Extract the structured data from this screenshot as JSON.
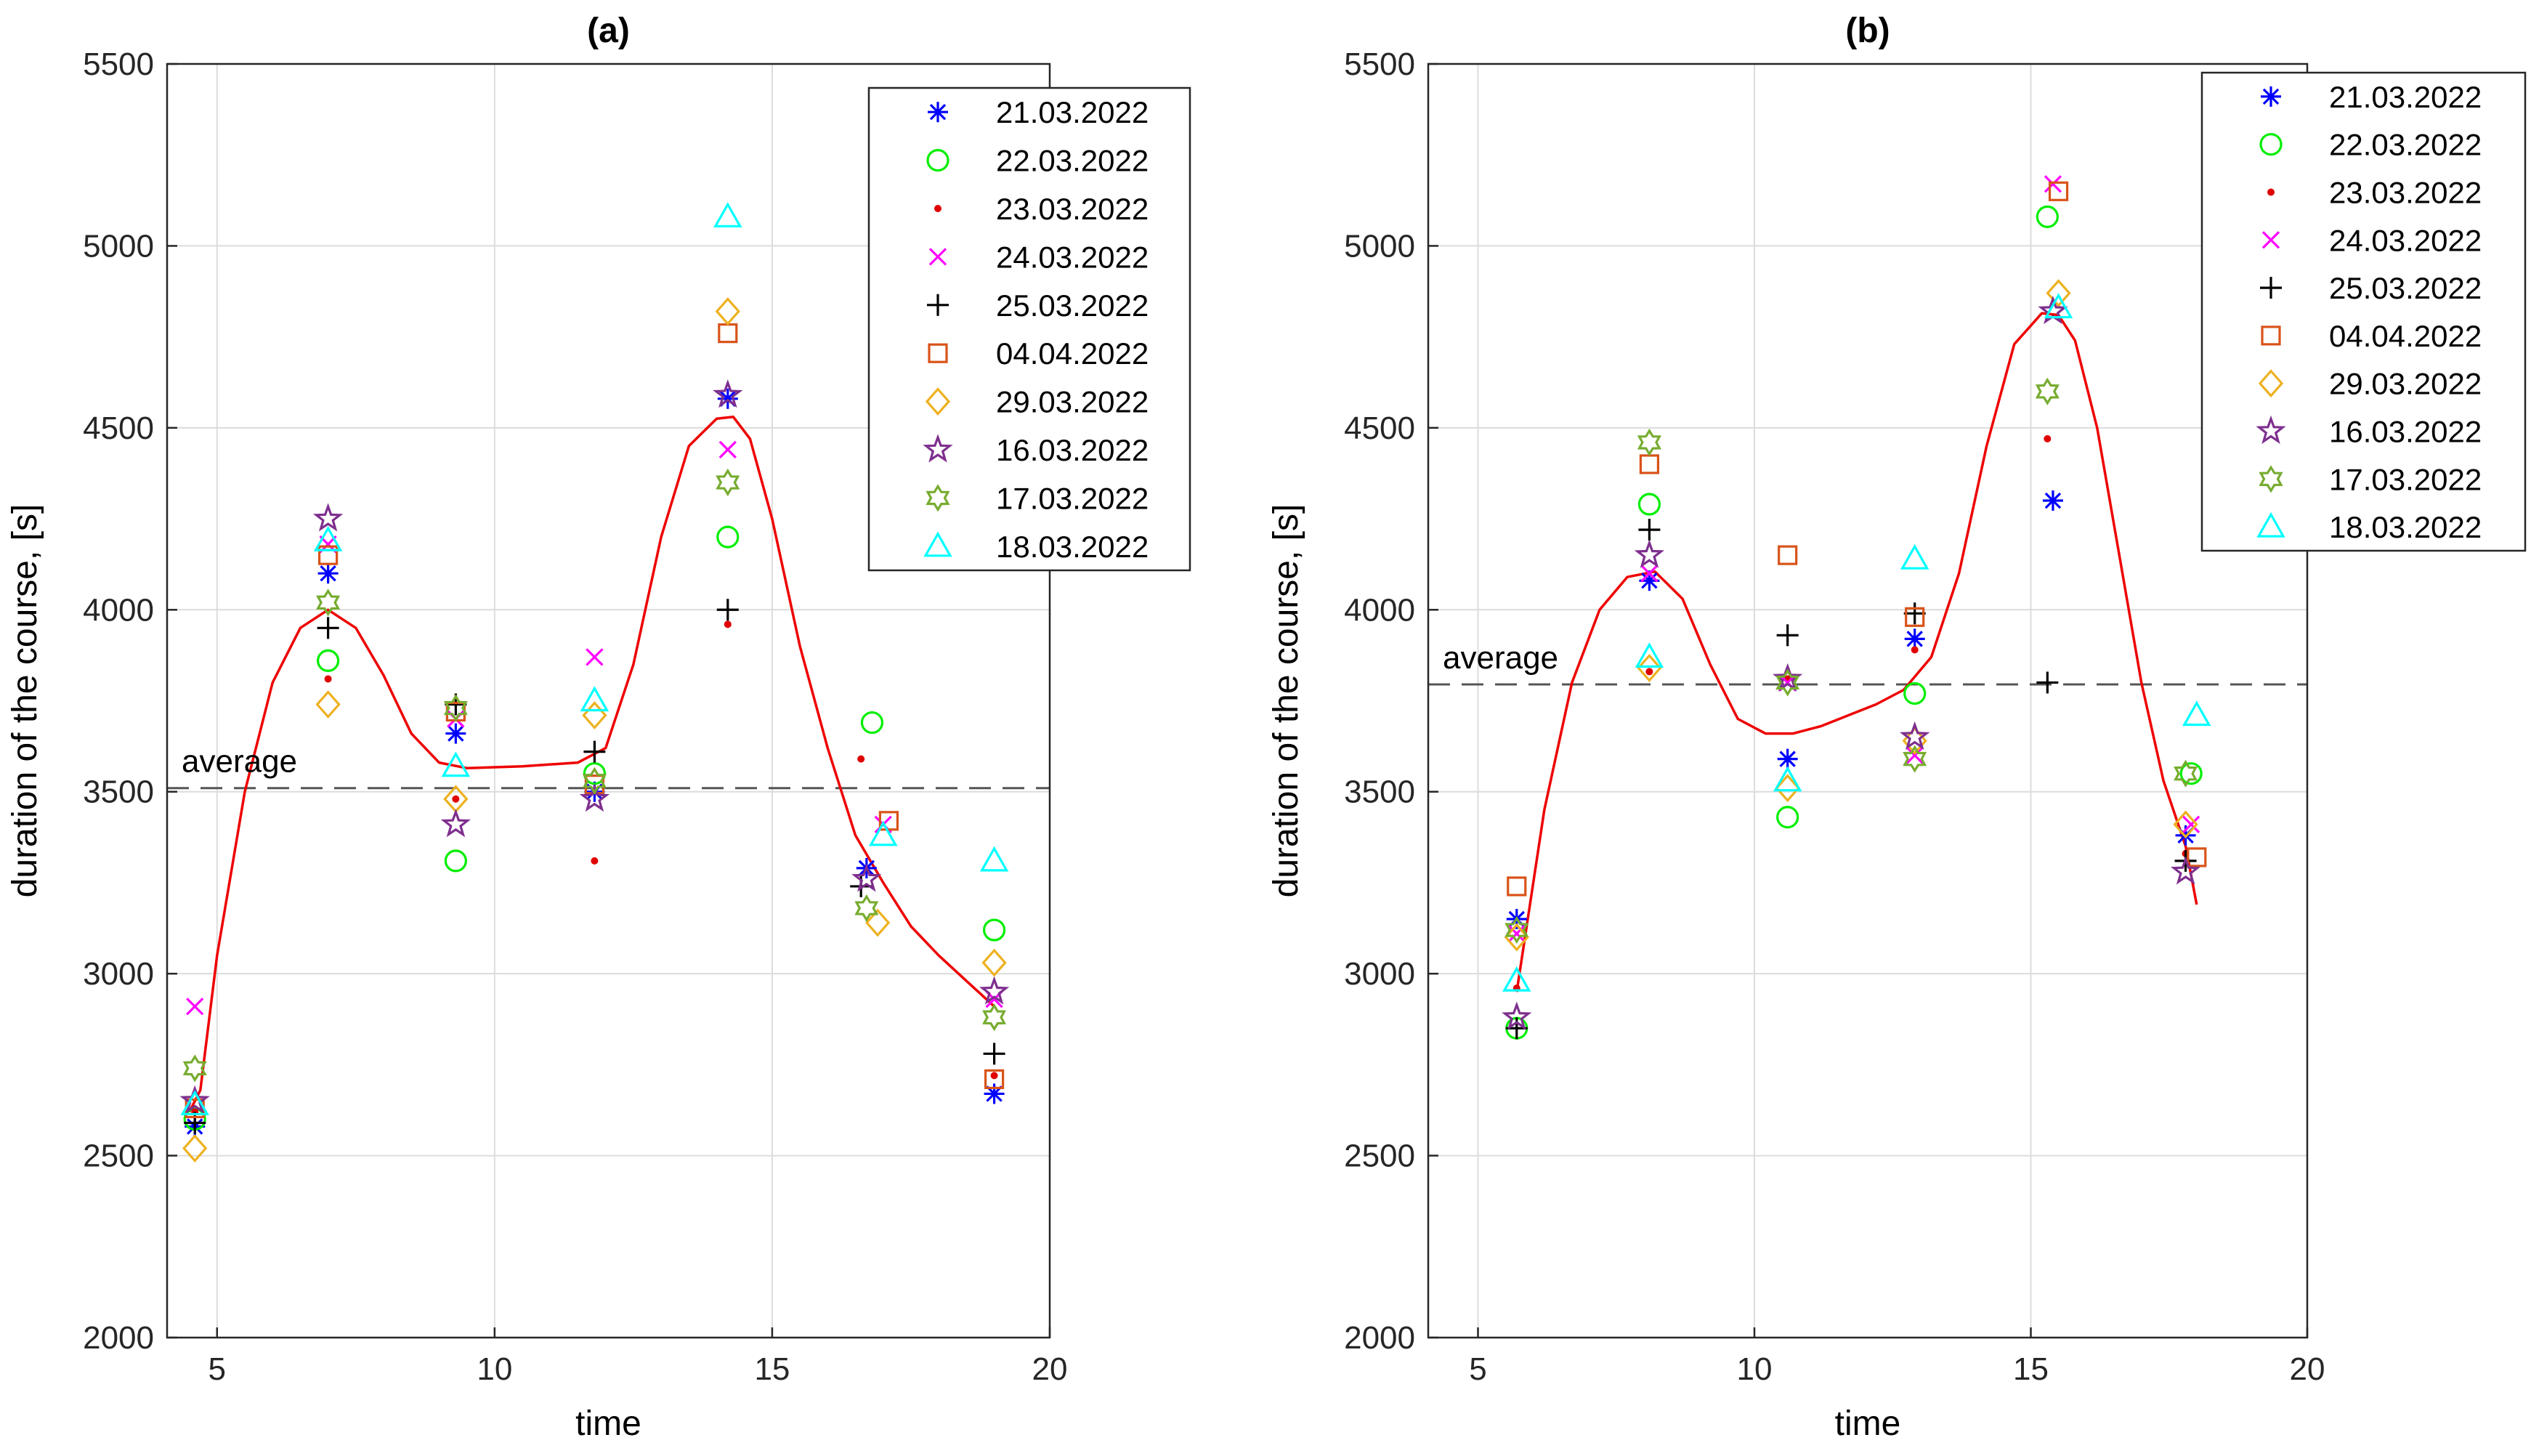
{
  "colors": {
    "21.03.2022": "#0000ff",
    "22.03.2022": "#00ee00",
    "23.03.2022": "#e00000",
    "24.03.2022": "#ff00ff",
    "25.03.2022": "#000000",
    "04.04.2022": "#d95319",
    "29.03.2022": "#edb120",
    "16.03.2022": "#7e2f8e",
    "17.03.2022": "#77ac30",
    "18.03.2022": "#00ffff",
    "curve": "#ee0000",
    "average": "#555555",
    "grid": "#dcdcdc"
  },
  "chart_data": [
    {
      "type": "scatter",
      "title": "(a)",
      "xlabel": "time",
      "ylabel": "duration of the course, [s]",
      "xlim": [
        4.1,
        20
      ],
      "ylim": [
        2000,
        5500
      ],
      "xticks": [
        5,
        10,
        15,
        20
      ],
      "yticks": [
        2000,
        2500,
        3000,
        3500,
        4000,
        4500,
        5000,
        5500
      ],
      "grid": true,
      "legend_position": "top-right",
      "average": {
        "label": "average",
        "value": 3510
      },
      "curve": {
        "x": [
          4.5,
          4.7,
          5.0,
          5.5,
          6.0,
          6.5,
          7.0,
          7.5,
          8.0,
          8.5,
          9.0,
          9.5,
          10.5,
          11.5,
          12.0,
          12.5,
          13.0,
          13.5,
          14.0,
          14.3,
          14.6,
          15.0,
          15.5,
          16.0,
          16.5,
          17.0,
          17.5,
          18.0,
          18.5,
          19.0
        ],
        "y": [
          2620,
          2680,
          3050,
          3500,
          3800,
          3950,
          4000,
          3950,
          3820,
          3660,
          3580,
          3565,
          3570,
          3580,
          3620,
          3850,
          4200,
          4450,
          4525,
          4530,
          4470,
          4250,
          3900,
          3620,
          3380,
          3250,
          3130,
          3050,
          2980,
          2910
        ]
      },
      "series": [
        {
          "name": "21.03.2022",
          "marker": "asterisk",
          "x": [
            4.6,
            7.0,
            9.3,
            11.8,
            14.2,
            16.7,
            19.0
          ],
          "y": [
            2580,
            4100,
            3660,
            3500,
            4580,
            3290,
            2670
          ]
        },
        {
          "name": "22.03.2022",
          "marker": "circle",
          "x": [
            4.6,
            7.0,
            9.3,
            11.8,
            14.2,
            16.8,
            19.0
          ],
          "y": [
            2600,
            3860,
            3310,
            3550,
            4200,
            3690,
            3120
          ]
        },
        {
          "name": "23.03.2022",
          "marker": "dot",
          "x": [
            4.6,
            7.0,
            9.3,
            11.8,
            14.2,
            16.6,
            19.0
          ],
          "y": [
            2620,
            3810,
            3480,
            3310,
            3960,
            3590,
            2720
          ]
        },
        {
          "name": "24.03.2022",
          "marker": "x",
          "x": [
            4.6,
            7.0,
            9.3,
            11.8,
            14.2,
            17.0,
            19.0
          ],
          "y": [
            2910,
            4180,
            3700,
            3870,
            4440,
            3410,
            2930
          ]
        },
        {
          "name": "25.03.2022",
          "marker": "plus",
          "x": [
            4.6,
            7.0,
            9.3,
            11.8,
            14.2,
            16.6,
            19.0
          ],
          "y": [
            2590,
            3950,
            3740,
            3610,
            4000,
            3240,
            2780
          ]
        },
        {
          "name": "04.04.2022",
          "marker": "square",
          "x": [
            4.6,
            7.0,
            9.3,
            11.8,
            14.2,
            17.1,
            19.0
          ],
          "y": [
            2630,
            4150,
            3720,
            3520,
            4760,
            3420,
            2710
          ]
        },
        {
          "name": "29.03.2022",
          "marker": "diamond",
          "x": [
            4.6,
            7.0,
            9.3,
            11.8,
            14.2,
            16.9,
            19.0
          ],
          "y": [
            2520,
            3740,
            3480,
            3710,
            4820,
            3140,
            3030
          ]
        },
        {
          "name": "16.03.2022",
          "marker": "pentagram",
          "x": [
            4.6,
            7.0,
            9.3,
            11.8,
            14.2,
            16.7,
            19.0
          ],
          "y": [
            2650,
            4250,
            3410,
            3480,
            4590,
            3260,
            2950
          ]
        },
        {
          "name": "17.03.2022",
          "marker": "hexagram",
          "x": [
            4.6,
            7.0,
            9.3,
            11.8,
            14.2,
            16.7,
            19.0
          ],
          "y": [
            2740,
            4020,
            3730,
            3530,
            4350,
            3180,
            2880
          ]
        },
        {
          "name": "18.03.2022",
          "marker": "triangle",
          "x": [
            4.6,
            7.0,
            9.3,
            11.8,
            14.2,
            17.0,
            19.0
          ],
          "y": [
            2640,
            4190,
            3570,
            3750,
            5080,
            3380,
            3310
          ]
        }
      ]
    },
    {
      "type": "scatter",
      "title": "(b)",
      "xlabel": "time",
      "ylabel": "duration of the course, [s]",
      "xlim": [
        4.1,
        20
      ],
      "ylim": [
        2000,
        5500
      ],
      "xticks": [
        5,
        10,
        15,
        20
      ],
      "yticks": [
        2000,
        2500,
        3000,
        3500,
        4000,
        4500,
        5000,
        5500
      ],
      "grid": true,
      "legend_position": "top-right",
      "average": {
        "label": "average",
        "value": 3795
      },
      "curve": {
        "x": [
          5.7,
          6.2,
          6.7,
          7.2,
          7.7,
          8.2,
          8.7,
          9.2,
          9.7,
          10.2,
          10.7,
          11.2,
          11.7,
          12.2,
          12.7,
          13.2,
          13.7,
          14.2,
          14.7,
          15.2,
          15.5,
          15.8,
          16.2,
          16.6,
          17.0,
          17.4,
          17.8,
          18.0
        ],
        "y": [
          2950,
          3450,
          3800,
          4000,
          4090,
          4105,
          4030,
          3850,
          3700,
          3660,
          3660,
          3680,
          3710,
          3740,
          3780,
          3870,
          4100,
          4450,
          4730,
          4815,
          4810,
          4740,
          4500,
          4150,
          3800,
          3530,
          3350,
          3190
        ]
      },
      "series": [
        {
          "name": "21.03.2022",
          "marker": "asterisk",
          "x": [
            5.7,
            8.1,
            10.6,
            12.9,
            15.4,
            17.8
          ],
          "y": [
            3150,
            4080,
            3590,
            3920,
            4300,
            3380
          ]
        },
        {
          "name": "22.03.2022",
          "marker": "circle",
          "x": [
            5.7,
            8.1,
            10.6,
            12.9,
            15.3,
            17.9
          ],
          "y": [
            2850,
            4290,
            3430,
            3770,
            5080,
            3550
          ]
        },
        {
          "name": "23.03.2022",
          "marker": "dot",
          "x": [
            5.7,
            8.1,
            10.6,
            12.9,
            15.3,
            17.8
          ],
          "y": [
            2960,
            3830,
            3810,
            3890,
            4470,
            3330
          ]
        },
        {
          "name": "24.03.2022",
          "marker": "x",
          "x": [
            5.7,
            8.1,
            10.6,
            12.9,
            15.4,
            17.9
          ],
          "y": [
            3110,
            4100,
            3800,
            3600,
            5170,
            3410
          ]
        },
        {
          "name": "25.03.2022",
          "marker": "plus",
          "x": [
            5.7,
            8.1,
            10.6,
            12.9,
            15.3,
            17.8
          ],
          "y": [
            2850,
            4220,
            3930,
            3990,
            3800,
            3310
          ]
        },
        {
          "name": "04.04.2022",
          "marker": "square",
          "x": [
            5.7,
            8.1,
            10.6,
            12.9,
            15.5,
            18.0
          ],
          "y": [
            3240,
            4400,
            4150,
            3980,
            5150,
            3320
          ]
        },
        {
          "name": "29.03.2022",
          "marker": "diamond",
          "x": [
            5.7,
            8.1,
            10.6,
            12.9,
            15.5,
            17.8
          ],
          "y": [
            3100,
            3840,
            3510,
            3640,
            4870,
            3410
          ]
        },
        {
          "name": "16.03.2022",
          "marker": "pentagram",
          "x": [
            5.7,
            8.1,
            10.6,
            12.9,
            15.4,
            17.8
          ],
          "y": [
            2880,
            4150,
            3810,
            3650,
            4820,
            3280
          ]
        },
        {
          "name": "17.03.2022",
          "marker": "hexagram",
          "x": [
            5.7,
            8.1,
            10.6,
            12.9,
            15.3,
            17.8
          ],
          "y": [
            3120,
            4460,
            3800,
            3590,
            4600,
            3550
          ]
        },
        {
          "name": "18.03.2022",
          "marker": "triangle",
          "x": [
            5.7,
            8.1,
            10.6,
            12.9,
            15.5,
            18.0
          ],
          "y": [
            2980,
            3870,
            3530,
            4140,
            4830,
            3710
          ]
        }
      ]
    }
  ]
}
